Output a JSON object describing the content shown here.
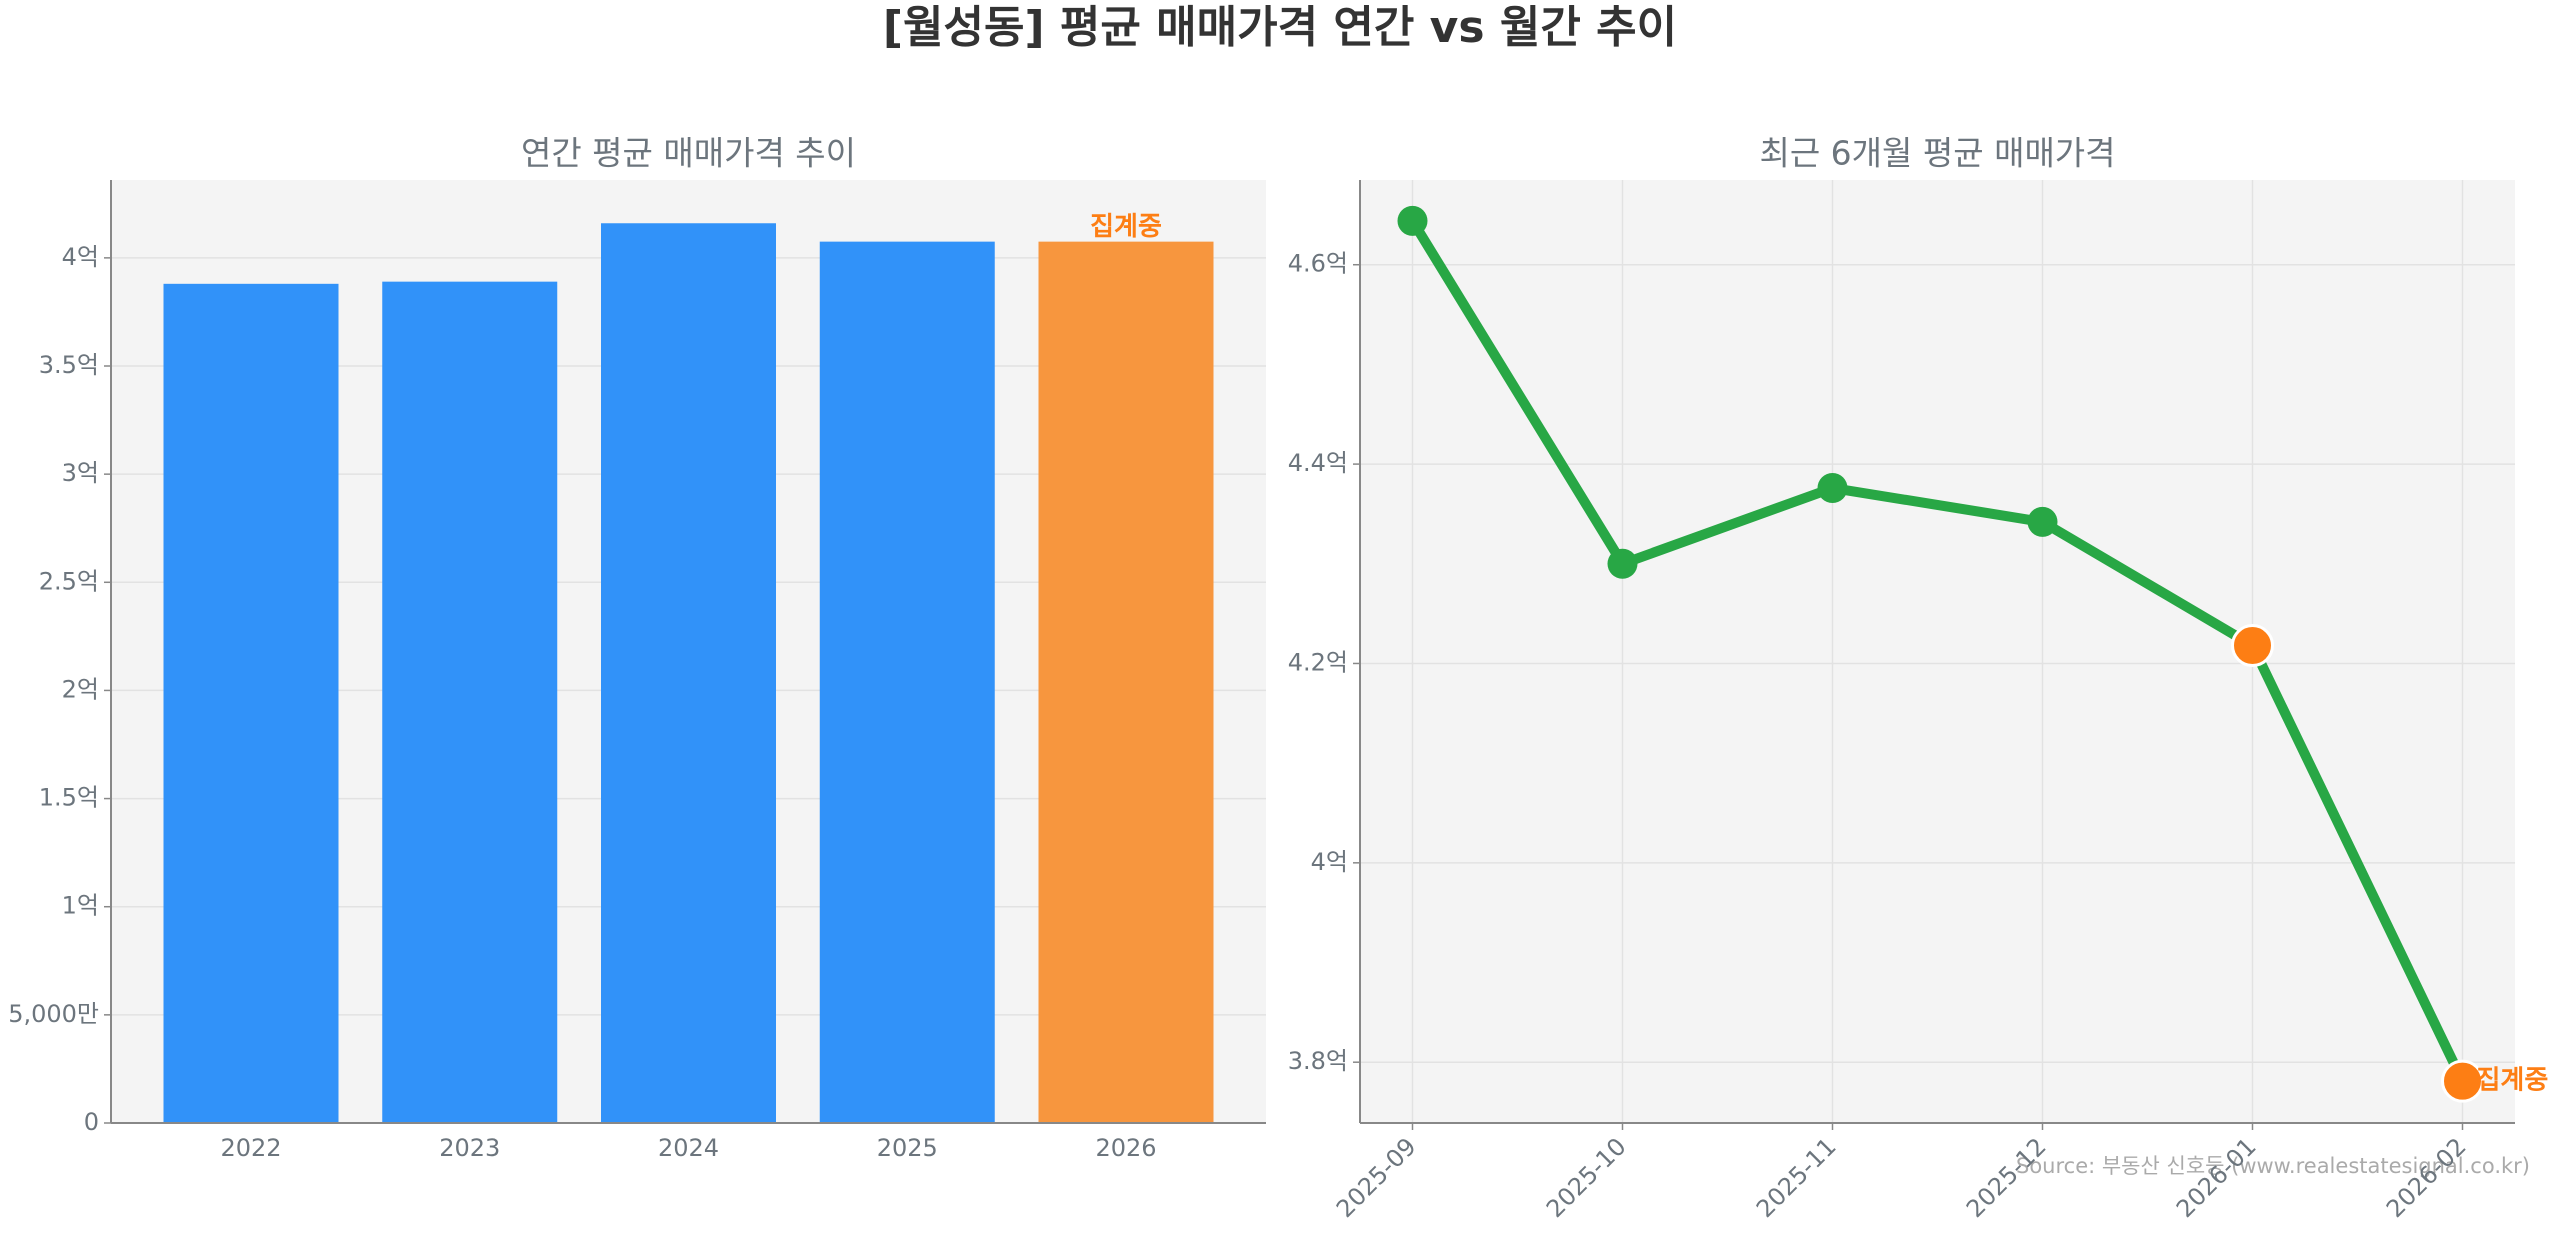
{
  "title": "[월성동] 평균 매매가격 연간 vs 월간 추이",
  "source": "Source: 부동산 신호등 (www.realestatesignal.co.kr)",
  "chart_data": [
    {
      "type": "bar",
      "title": "연간 평균 매매가격 추이",
      "categories": [
        "2022",
        "2023",
        "2024",
        "2025",
        "2026"
      ],
      "values": [
        3.88,
        3.89,
        4.16,
        4.075,
        4.075
      ],
      "colors": [
        "#3192f9",
        "#3192f9",
        "#3192f9",
        "#3192f9",
        "#f7963e"
      ],
      "ylim": [
        0,
        4.36
      ],
      "yticks": [
        0,
        {
          "value": 0.5,
          "label": "5,000만"
        },
        {
          "value": 1,
          "label": "1억"
        },
        {
          "value": 1.5,
          "label": "1.5억"
        },
        {
          "value": 2,
          "label": "2억"
        },
        {
          "value": 2.5,
          "label": "2.5억"
        },
        {
          "value": 3,
          "label": "3억"
        },
        {
          "value": 3.5,
          "label": "3.5억"
        },
        {
          "value": 4,
          "label": "4억"
        }
      ],
      "grid": true,
      "annotation": {
        "text": "집계중",
        "color": "#fd7e14"
      }
    },
    {
      "type": "line",
      "title": "최근 6개월 평균 매매가격",
      "categories": [
        "2025-09",
        "2025-10",
        "2025-11",
        "2025-12",
        "2026-01",
        "2026-02"
      ],
      "values": [
        4.644,
        4.3,
        4.376,
        4.342,
        4.218,
        3.781
      ],
      "color": "#28a745",
      "marker_colors": [
        "#28a745",
        "#28a745",
        "#28a745",
        "#28a745",
        "#fd7e14",
        "#fd7e14"
      ],
      "ylim": [
        3.739,
        4.685
      ],
      "yticks": [
        {
          "value": 3.8,
          "label": "3.8억"
        },
        {
          "value": 4,
          "label": "4억"
        },
        {
          "value": 4.2,
          "label": "4.2억"
        },
        {
          "value": 4.4,
          "label": "4.4억"
        },
        {
          "value": 4.6,
          "label": "4.6억"
        }
      ],
      "grid": true,
      "annotation": {
        "text": "집계중",
        "color": "#fd7e14"
      }
    }
  ]
}
